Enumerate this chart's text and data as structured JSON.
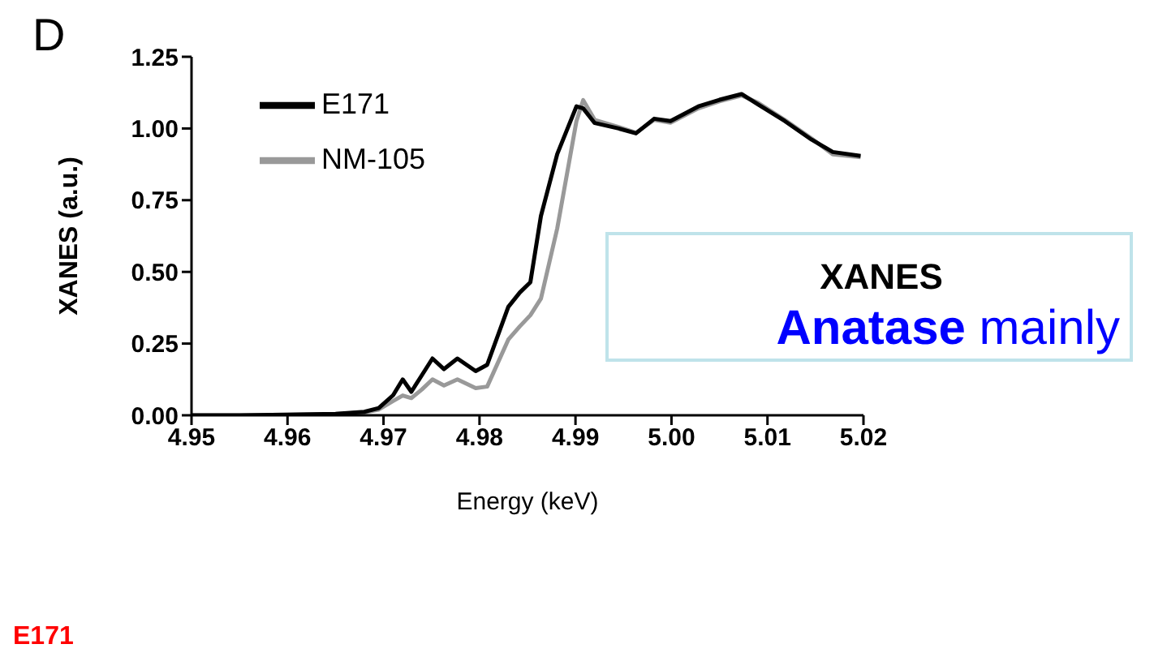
{
  "chart_data": {
    "type": "line",
    "xlabel": "Energy (keV)",
    "ylabel": "XANES (a.u.)",
    "x": [
      4.95,
      4.955,
      4.96,
      4.965,
      4.968,
      4.9695,
      4.971,
      4.972,
      4.9729,
      4.974,
      4.9751,
      4.9763,
      4.9777,
      4.9796,
      4.9808,
      4.983,
      4.9842,
      4.9853,
      4.9864,
      4.9881,
      4.9901,
      4.9908,
      4.992,
      4.9945,
      4.9963,
      4.9982,
      4.9999,
      5.0028,
      5.005,
      5.0073,
      5.009,
      5.0118,
      5.0146,
      5.0168,
      5.0197
    ],
    "series": [
      {
        "name": "NM-105",
        "color": "#999999",
        "values": [
          0,
          0,
          0.002,
          0.004,
          0.01,
          0.02,
          0.05,
          0.069,
          0.06,
          0.09,
          0.125,
          0.104,
          0.125,
          0.095,
          0.1,
          0.264,
          0.31,
          0.349,
          0.407,
          0.652,
          1.026,
          1.099,
          1.03,
          1.005,
          0.985,
          1.03,
          1.02,
          1.07,
          1.095,
          1.115,
          1.09,
          1.03,
          0.965,
          0.91,
          0.9
        ]
      },
      {
        "name": "E171",
        "color": "#000000",
        "values": [
          0,
          0,
          0.002,
          0.005,
          0.012,
          0.025,
          0.07,
          0.125,
          0.082,
          0.14,
          0.198,
          0.161,
          0.198,
          0.154,
          0.176,
          0.378,
          0.428,
          0.464,
          0.695,
          0.911,
          1.077,
          1.07,
          1.019,
          1.0,
          0.983,
          1.034,
          1.026,
          1.077,
          1.1,
          1.12,
          1.084,
          1.026,
          0.961,
          0.918,
          0.904
        ]
      }
    ],
    "xlim": [
      4.95,
      5.02
    ],
    "xticks": [
      {
        "value": 4.95,
        "label": "4.95"
      },
      {
        "value": 4.96,
        "label": "4.96"
      },
      {
        "value": 4.97,
        "label": "4.97"
      },
      {
        "value": 4.98,
        "label": "4.98"
      },
      {
        "value": 4.99,
        "label": "4.99"
      },
      {
        "value": 5.0,
        "label": "5.00"
      },
      {
        "value": 5.01,
        "label": "5.01"
      },
      {
        "value": 5.02,
        "label": "5.02"
      }
    ],
    "ylim": [
      0,
      1.25
    ],
    "yticks": [
      {
        "value": 0,
        "label": "0.00"
      },
      {
        "value": 0.25,
        "label": "0.25"
      },
      {
        "value": 0.5,
        "label": "0.50"
      },
      {
        "value": 0.75,
        "label": "0.75"
      },
      {
        "value": 1.0,
        "label": "1.00"
      },
      {
        "value": 1.25,
        "label": "1.25"
      }
    ],
    "legend": "top left",
    "grid": false,
    "marker": "none",
    "line_style": "solid",
    "annotations": [
      "D",
      "XANES",
      "Anatase mainly",
      "E171"
    ]
  }
}
